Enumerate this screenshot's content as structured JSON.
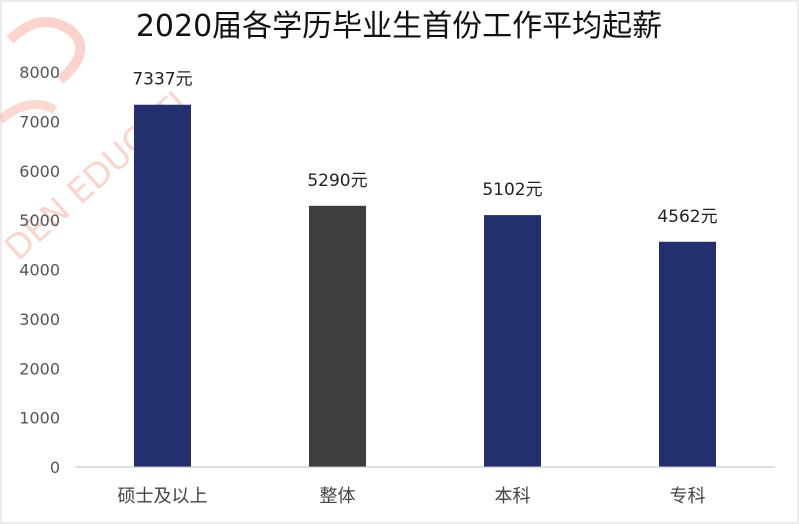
{
  "chart_data": {
    "type": "bar",
    "title": "2020届各学历毕业生首份工作平均起薪",
    "categories": [
      "硕士及以上",
      "整体",
      "本科",
      "专科"
    ],
    "values": [
      7337,
      5290,
      5102,
      4562
    ],
    "data_labels": [
      "7337元",
      "5290元",
      "5102元",
      "4562元"
    ],
    "bar_colors": [
      "#24306e",
      "#3f3f3f",
      "#24306e",
      "#24306e"
    ],
    "ylim": [
      0,
      8000
    ],
    "yticks": [
      0,
      1000,
      2000,
      3000,
      4000,
      5000,
      6000,
      7000,
      8000
    ],
    "xlabel": "",
    "ylabel": "",
    "grid": false,
    "legend": "none"
  },
  "watermark": {
    "text": "DEN EDUCATI",
    "color": "#f07a63"
  }
}
